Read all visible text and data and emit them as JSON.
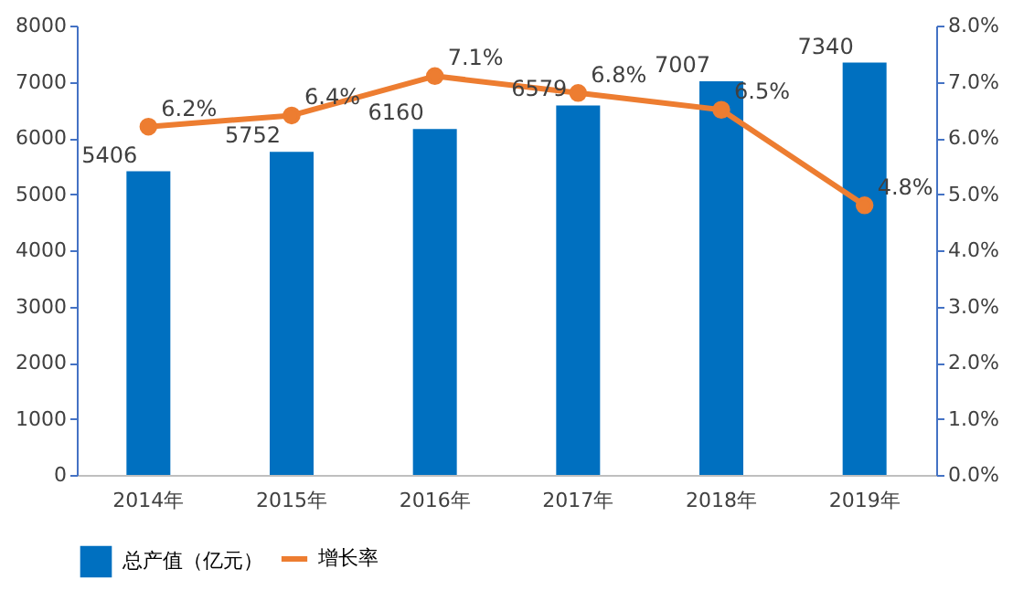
{
  "chart_data": {
    "type": "bar",
    "categories": [
      "2014年",
      "2015年",
      "2016年",
      "2017年",
      "2018年",
      "2019年"
    ],
    "series": [
      {
        "name": "总产值（亿元）",
        "color": "#0070c0",
        "values": [
          5406,
          5752,
          6160,
          6579,
          7007,
          7340
        ],
        "value_labels": [
          "5406",
          "5752",
          "6160",
          "6579",
          "7007",
          "7340"
        ]
      },
      {
        "name": "增长率",
        "type": "line",
        "axis": "y2",
        "color": "#ed7d31",
        "values": [
          6.2,
          6.4,
          7.1,
          6.8,
          6.5,
          4.8
        ],
        "value_labels": [
          "6.2%",
          "6.4%",
          "7.1%",
          "6.8%",
          "6.5%",
          "4.8%"
        ]
      }
    ],
    "ylim": [
      0,
      8000
    ],
    "yticks": [
      0,
      1000,
      2000,
      3000,
      4000,
      5000,
      6000,
      7000,
      8000
    ],
    "y2lim": [
      0,
      8
    ],
    "y2ticks": [
      {
        "value": 0,
        "label": "0.0%"
      },
      {
        "value": 1,
        "label": "1.0%"
      },
      {
        "value": 2,
        "label": "2.0%"
      },
      {
        "value": 3,
        "label": "3.0%"
      },
      {
        "value": 4,
        "label": "4.0%"
      },
      {
        "value": 5,
        "label": "5.0%"
      },
      {
        "value": 6,
        "label": "6.0%"
      },
      {
        "value": 7,
        "label": "7.0%"
      },
      {
        "value": 8,
        "label": "8.0%"
      }
    ],
    "marker": "circle",
    "legend": "bottom",
    "grid": false
  }
}
